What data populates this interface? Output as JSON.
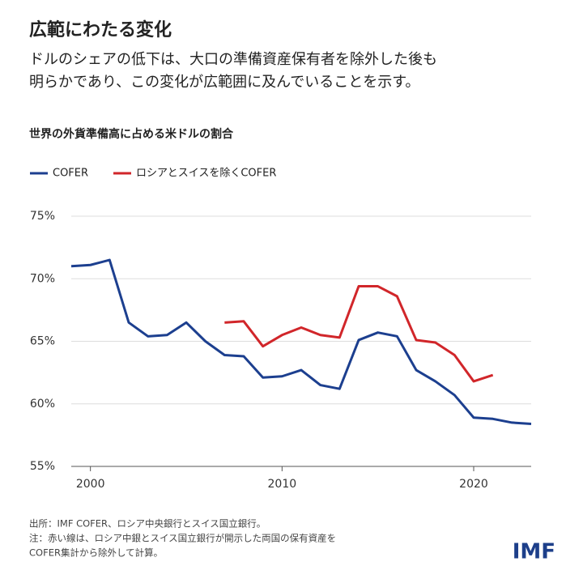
{
  "chart_data": {
    "type": "line",
    "title": "広範にわたる変化",
    "subtitle": [
      "ドルのシェアの低下は、大口の準備資産保有者を除外した後も",
      "明らかであり、この変化が広範囲に及んでいることを示す。"
    ],
    "chart_title": "世界の外貨準備高に占める米ドルの割合",
    "x": [
      1999,
      2000,
      2001,
      2002,
      2003,
      2004,
      2005,
      2006,
      2007,
      2008,
      2009,
      2010,
      2011,
      2012,
      2013,
      2014,
      2015,
      2016,
      2017,
      2018,
      2019,
      2020,
      2021,
      2022,
      2023
    ],
    "series": [
      {
        "name": "COFER",
        "color": "#1c3f8f",
        "values": [
          71.0,
          71.1,
          71.5,
          66.5,
          65.4,
          65.5,
          66.5,
          65.0,
          63.9,
          63.8,
          62.1,
          62.2,
          62.7,
          61.5,
          61.2,
          65.1,
          65.7,
          65.4,
          62.7,
          61.8,
          60.7,
          58.9,
          58.8,
          58.5,
          58.4
        ]
      },
      {
        "name": "ロシアとスイスを除くCOFER",
        "color": "#d1262a",
        "values": [
          null,
          null,
          null,
          null,
          null,
          null,
          null,
          null,
          66.5,
          66.6,
          64.6,
          65.5,
          66.1,
          65.5,
          65.3,
          69.4,
          69.4,
          68.6,
          65.1,
          64.9,
          63.9,
          61.8,
          62.3,
          null,
          null
        ]
      }
    ],
    "xlim": [
      1999,
      2023
    ],
    "xticks": [
      2000,
      2010,
      2020
    ],
    "ylim": [
      55,
      75
    ],
    "yticks": [
      {
        "value": 55,
        "label": "55%"
      },
      {
        "value": 60,
        "label": "60%"
      },
      {
        "value": 65,
        "label": "65%"
      },
      {
        "value": 70,
        "label": "70%"
      },
      {
        "value": 75,
        "label": "75%"
      }
    ],
    "grid": true,
    "notes": [
      "出所：IMF COFER、ロシア中央銀行とスイス国立銀行。",
      "注：赤い線は、ロシア中銀とスイス国立銀行が開示した両国の保有資産を",
      "COFER集計から除外して計算。"
    ],
    "logo": "IMF"
  }
}
